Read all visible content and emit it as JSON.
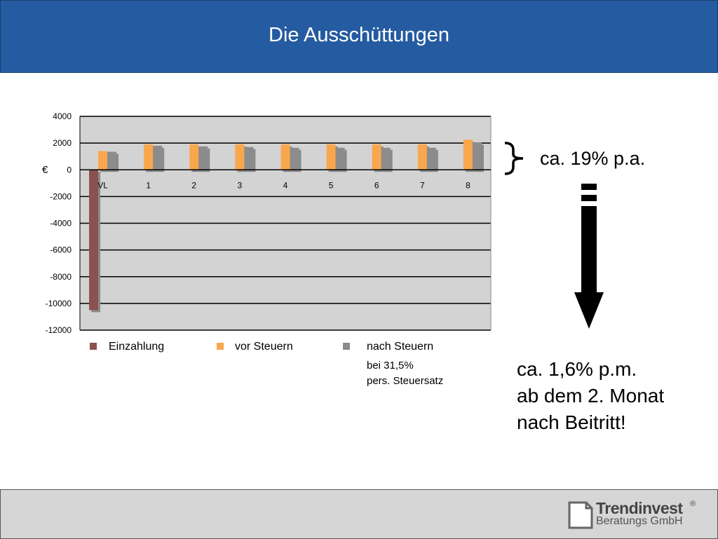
{
  "header": {
    "title": "Die Ausschüttungen"
  },
  "chart_data": {
    "type": "bar",
    "categories": [
      "VL",
      "1",
      "2",
      "3",
      "4",
      "5",
      "6",
      "7",
      "8"
    ],
    "series": [
      {
        "name": "Einzahlung",
        "values": [
          -10500,
          0,
          0,
          0,
          0,
          0,
          0,
          0,
          0
        ],
        "color": "#8b5050"
      },
      {
        "name": "vor Steuern",
        "values": [
          1400,
          1900,
          1900,
          1900,
          1900,
          1900,
          1900,
          1900,
          2250
        ],
        "color": "#f9a74c"
      },
      {
        "name": "nach Steuern",
        "values": [
          1350,
          1800,
          1750,
          1700,
          1650,
          1650,
          1650,
          1650,
          2050
        ],
        "color": "#8c8c8c"
      }
    ],
    "ylabel": "€",
    "ylim": [
      -12000,
      4000
    ],
    "yticks": [
      "4000",
      "2000",
      "0",
      "-2000",
      "-4000",
      "-6000",
      "-8000",
      "-10000",
      "-12000"
    ],
    "ytick_values": [
      4000,
      2000,
      0,
      -2000,
      -4000,
      -6000,
      -8000,
      -10000,
      -12000
    ],
    "grid": true,
    "legend_placement": "bottom"
  },
  "legend": {
    "einzahlung": "Einzahlung",
    "vor_steuern": "vor Steuern",
    "nach_steuern_1": "nach Steuern",
    "nach_steuern_2": "bei 31,5%",
    "nach_steuern_3": "pers. Steuersatz"
  },
  "annotations": {
    "annual": "ca. 19% p.a.",
    "monthly_1": "ca. 1,6% p.m.",
    "monthly_2": "ab dem 2. Monat",
    "monthly_3": "nach Beitritt!"
  },
  "logo": {
    "name": "Trendinvest",
    "reg": "®",
    "sub": "Beratungs GmbH"
  }
}
